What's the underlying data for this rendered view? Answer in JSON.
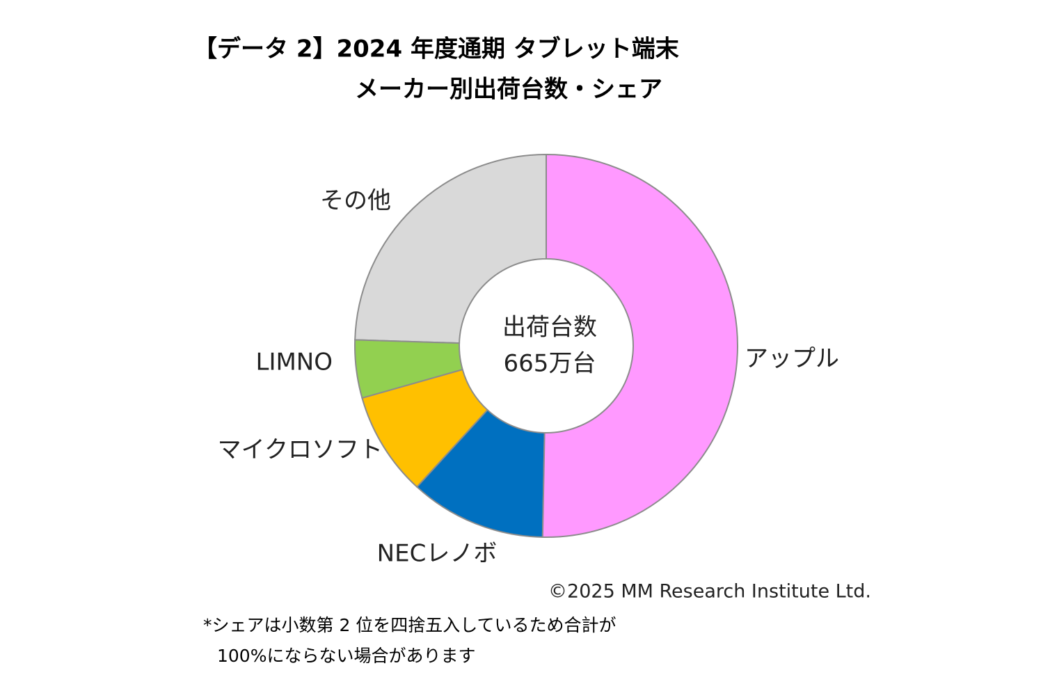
{
  "chart_data": {
    "type": "donut",
    "title": [
      "【データ 2】2024 年度通期 タブレット端末",
      "メーカー別出荷台数・シェア"
    ],
    "categories": [
      "アップル",
      "NECレノボ",
      "マイクロソフト",
      "LIMNO",
      "その他"
    ],
    "values": [
      50.3,
      11.5,
      8.8,
      4.9,
      24.5
    ],
    "colors": [
      "#ff99ff",
      "#0070c0",
      "#ffc000",
      "#92d050",
      "#d9d9d9"
    ],
    "center_label": [
      "出荷台数",
      "665万台"
    ],
    "copyright": "©2025  MM Research Institute Ltd.",
    "footnote": [
      "*シェアは小数第 2 位を四捨五入しているため合計が",
      "100%にならない場合があります"
    ]
  }
}
